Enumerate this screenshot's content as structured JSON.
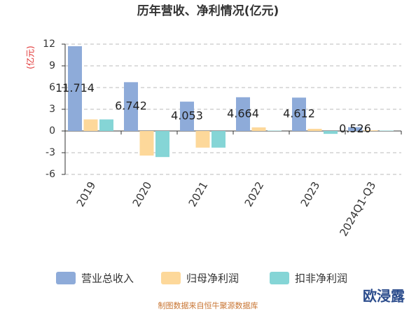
{
  "chart_data": {
    "type": "bar",
    "title": "历年营收、净利情况(亿元)",
    "y_label": "(亿元)",
    "categories": [
      "2019",
      "2020",
      "2021",
      "2022",
      "2023",
      "2024Q1-Q3"
    ],
    "series": [
      {
        "name": "营业总收入",
        "color": "#8eabd9",
        "values": [
          11.714,
          6.742,
          4.053,
          4.664,
          4.612,
          0.526
        ],
        "show_labels": true
      },
      {
        "name": "归母净利润",
        "color": "#fdd89a",
        "values": [
          1.6,
          -3.4,
          -2.3,
          0.5,
          0.3,
          0.1
        ],
        "show_labels": false
      },
      {
        "name": "扣非净利润",
        "color": "#85d5d6",
        "values": [
          1.6,
          -3.6,
          -2.3,
          0.05,
          -0.4,
          0.05
        ],
        "show_labels": false
      }
    ],
    "ylim": [
      -6,
      12
    ],
    "yticks": [
      -6,
      -3,
      0,
      3,
      6,
      9,
      12
    ],
    "grid": true,
    "source": "制图数据来自恒牛聚源数据库",
    "watermark": "欧浸露"
  }
}
